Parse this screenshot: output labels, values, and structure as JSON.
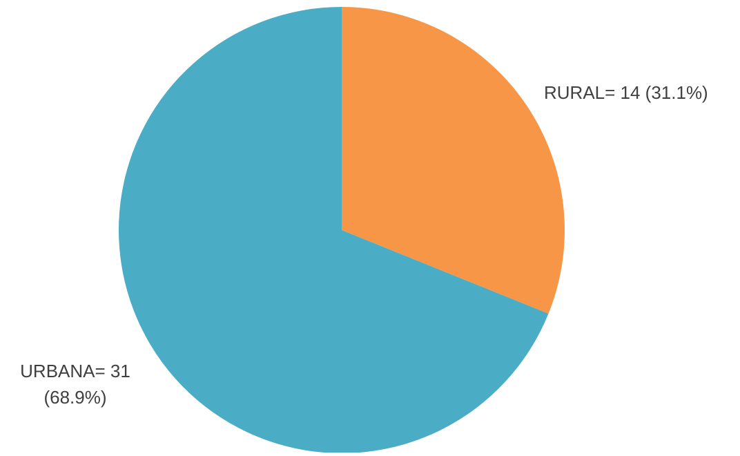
{
  "chart_data": {
    "type": "pie",
    "title": "",
    "slices": [
      {
        "category": "RURAL",
        "value": 14,
        "percent": 31.1,
        "label_lines": [
          "RURAL= 14 (31.1%)"
        ],
        "color": "#F79646"
      },
      {
        "category": "URBANA",
        "value": 31,
        "percent": 68.9,
        "label_lines": [
          "URBANA= 31",
          "(68.9%)"
        ],
        "color": "#4BACC6"
      }
    ],
    "start_angle": "12 o'clock",
    "direction": "clockwise",
    "legend": "none",
    "labels_position": "outside"
  }
}
